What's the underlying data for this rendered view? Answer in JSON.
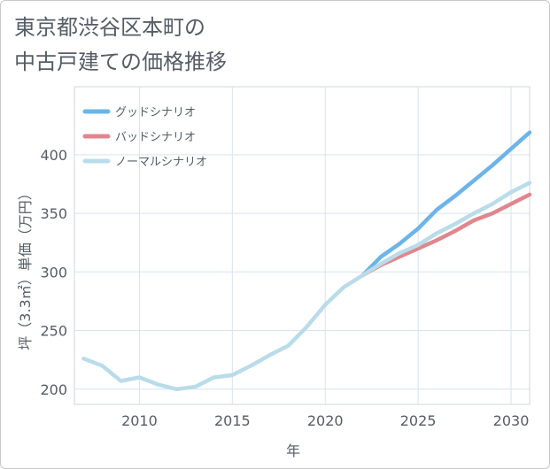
{
  "title": {
    "line1": "東京都渋谷区本町の",
    "line2": "中古戸建ての価格推移"
  },
  "chart_data": {
    "type": "line",
    "title": "東京都渋谷区本町の中古戸建ての価格推移",
    "xlabel": "年",
    "ylabel": "坪（3.3㎡）単価（万円）",
    "xlim": [
      2006.5,
      2031
    ],
    "ylim": [
      187,
      458
    ],
    "xticks": [
      2010,
      2015,
      2020,
      2025,
      2030
    ],
    "yticks": [
      200,
      250,
      300,
      350,
      400
    ],
    "grid": true,
    "legend_position": "top-left",
    "series": [
      {
        "name": "グッドシナリオ",
        "color": "#6cb4ea",
        "x": [
          2022,
          2023,
          2024,
          2025,
          2026,
          2027,
          2028,
          2029,
          2030,
          2031
        ],
        "values": [
          297,
          313,
          324,
          337,
          353,
          365,
          378,
          391,
          405,
          419
        ]
      },
      {
        "name": "バッドシナリオ",
        "color": "#e0868e",
        "x": [
          2022,
          2023,
          2024,
          2025,
          2026,
          2027,
          2028,
          2029,
          2030,
          2031
        ],
        "values": [
          297,
          306,
          313,
          320,
          327,
          335,
          344,
          350,
          358,
          366
        ]
      },
      {
        "name": "ノーマルシナリオ",
        "color": "#b9dcea",
        "x": [
          2007,
          2008,
          2009,
          2010,
          2011,
          2012,
          2013,
          2014,
          2015,
          2016,
          2017,
          2018,
          2019,
          2020,
          2021,
          2022,
          2023,
          2024,
          2025,
          2026,
          2027,
          2028,
          2029,
          2030,
          2031
        ],
        "values": [
          226,
          220,
          207,
          210,
          204,
          200,
          202,
          210,
          212,
          220,
          229,
          237,
          253,
          272,
          287,
          297,
          307,
          316,
          323,
          333,
          341,
          350,
          358,
          368,
          376
        ]
      }
    ]
  }
}
